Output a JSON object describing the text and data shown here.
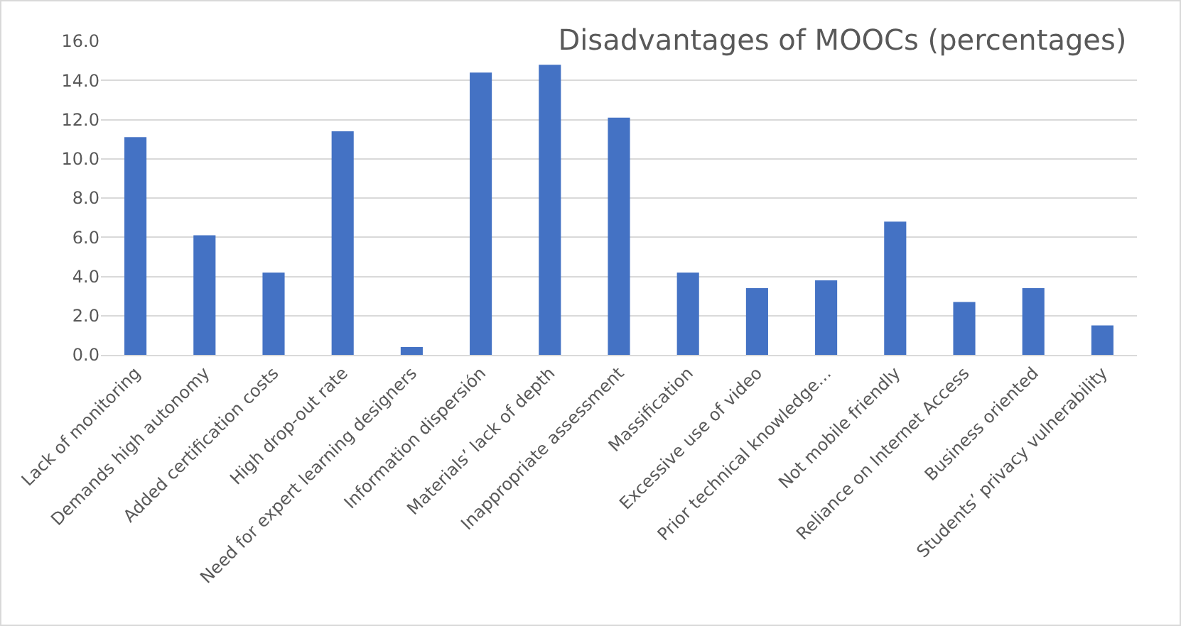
{
  "chart_data": {
    "type": "bar",
    "title": "Disadvantages of MOOCs (percentages)",
    "categories": [
      "Lack of monitoring",
      "Demands high autonomy",
      "Added certification costs",
      "High drop-out rate",
      "Need for expert learning designers",
      "Information dispersión",
      "Materials’ lack of depth",
      "Inappropriate assessment",
      "Massification",
      "Excessive use of video",
      "Prior technical knowledge…",
      "Not mobile friendly",
      "Reliance on Internet Access",
      "Business oriented",
      "Students’ privacy vulnerability"
    ],
    "values": [
      11.1,
      6.1,
      4.2,
      11.4,
      0.4,
      14.4,
      14.8,
      12.1,
      4.2,
      3.4,
      3.8,
      6.8,
      2.7,
      3.4,
      1.5
    ],
    "color": "#4472c4",
    "ylim": [
      0,
      16
    ],
    "yticks": [
      {
        "value": 0,
        "label": "0.0"
      },
      {
        "value": 2,
        "label": "2.0"
      },
      {
        "value": 4,
        "label": "4.0"
      },
      {
        "value": 6,
        "label": "6.0"
      },
      {
        "value": 8,
        "label": "8.0"
      },
      {
        "value": 10,
        "label": "10.0"
      },
      {
        "value": 12,
        "label": "12.0"
      },
      {
        "value": 14,
        "label": "14.0"
      },
      {
        "value": 16,
        "label": "16.0"
      }
    ],
    "grid": "y"
  }
}
